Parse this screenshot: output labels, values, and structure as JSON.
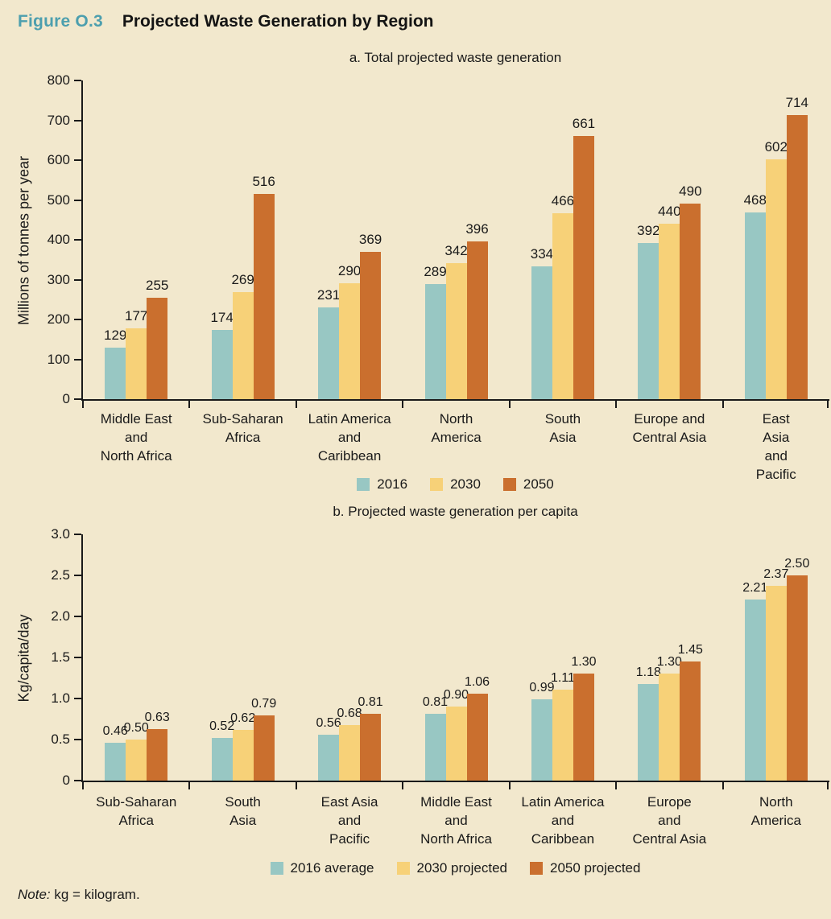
{
  "header": {
    "figure_label": "Figure O.3",
    "figure_title": "Projected Waste Generation by Region"
  },
  "colors": {
    "background": "#f2e8cd",
    "figure_label_teal": "#4d9fae",
    "axis_black": "#1a1a1a",
    "series_2016_teal": "#98c7c3",
    "series_2030_yellow": "#f7d178",
    "series_2050_orange": "#ca6f2e"
  },
  "chart_data": [
    {
      "type": "bar",
      "subtitle": "a. Total projected waste generation",
      "ylabel": "Millions of tonnes per year",
      "ylim": [
        0,
        800
      ],
      "yticks": [
        "0",
        "100",
        "200",
        "300",
        "400",
        "500",
        "600",
        "700",
        "800"
      ],
      "grid": false,
      "legend_position": "bottom-center",
      "categories": [
        {
          "label": "Middle East and North Africa",
          "lines": "Middle East\nand\nNorth Africa"
        },
        {
          "label": "Sub-Saharan Africa",
          "lines": "Sub-Saharan\nAfrica"
        },
        {
          "label": "Latin America and Caribbean",
          "lines": "Latin America\nand\nCaribbean"
        },
        {
          "label": "North America",
          "lines": "North\nAmerica"
        },
        {
          "label": "South Asia",
          "lines": "South\nAsia"
        },
        {
          "label": "Europe and Central Asia",
          "lines": "Europe and\nCentral Asia"
        },
        {
          "label": "East Asia and Pacific",
          "lines": "East Asia\nand\nPacific"
        }
      ],
      "series": [
        {
          "name": "2016",
          "color": "#98c7c3",
          "values": [
            129,
            174,
            231,
            289,
            334,
            392,
            468
          ],
          "display": [
            "129",
            "174",
            "231",
            "289",
            "334",
            "392",
            "468"
          ]
        },
        {
          "name": "2030",
          "color": "#f7d178",
          "values": [
            177,
            269,
            290,
            342,
            466,
            440,
            602
          ],
          "display": [
            "177",
            "269",
            "290",
            "342",
            "466",
            "440",
            "602"
          ]
        },
        {
          "name": "2050",
          "color": "#ca6f2e",
          "values": [
            255,
            516,
            369,
            396,
            661,
            490,
            714
          ],
          "display": [
            "255",
            "516",
            "369",
            "396",
            "661",
            "490",
            "714"
          ]
        }
      ]
    },
    {
      "type": "bar",
      "subtitle": "b. Projected waste generation per capita",
      "ylabel": "Kg/capita/day",
      "ylim": [
        0,
        3.0
      ],
      "yticks": [
        "0",
        "0.5",
        "1.0",
        "1.5",
        "2.0",
        "2.5",
        "3.0"
      ],
      "grid": false,
      "legend_position": "bottom-center",
      "categories": [
        {
          "label": "Sub-Saharan Africa",
          "lines": "Sub-Saharan\nAfrica"
        },
        {
          "label": "South Asia",
          "lines": "South\nAsia"
        },
        {
          "label": "East Asia and Pacific",
          "lines": "East Asia\nand\nPacific"
        },
        {
          "label": "Middle East and North Africa",
          "lines": "Middle East\nand\nNorth Africa"
        },
        {
          "label": "Latin America and Caribbean",
          "lines": "Latin America\nand\nCaribbean"
        },
        {
          "label": "Europe and Central Asia",
          "lines": "Europe\nand\nCentral Asia"
        },
        {
          "label": "North America",
          "lines": "North\nAmerica"
        }
      ],
      "series": [
        {
          "name": "2016 average",
          "color": "#98c7c3",
          "values": [
            0.46,
            0.52,
            0.56,
            0.81,
            0.99,
            1.18,
            2.21
          ],
          "display": [
            "0.46",
            "0.52",
            "0.56",
            "0.81",
            "0.99",
            "1.18",
            "2.21"
          ]
        },
        {
          "name": "2030 projected",
          "color": "#f7d178",
          "values": [
            0.5,
            0.62,
            0.68,
            0.9,
            1.11,
            1.3,
            2.37
          ],
          "display": [
            "0.50",
            "0.62",
            "0.68",
            "0.90",
            "1.11",
            "1.30",
            "2.37"
          ]
        },
        {
          "name": "2050 projected",
          "color": "#ca6f2e",
          "values": [
            0.63,
            0.79,
            0.81,
            1.06,
            1.3,
            1.45,
            2.5
          ],
          "display": [
            "0.63",
            "0.79",
            "0.81",
            "1.06",
            "1.30",
            "1.45",
            "2.50"
          ]
        }
      ]
    }
  ],
  "note": {
    "label": "Note:",
    "text": "kg = kilogram."
  }
}
